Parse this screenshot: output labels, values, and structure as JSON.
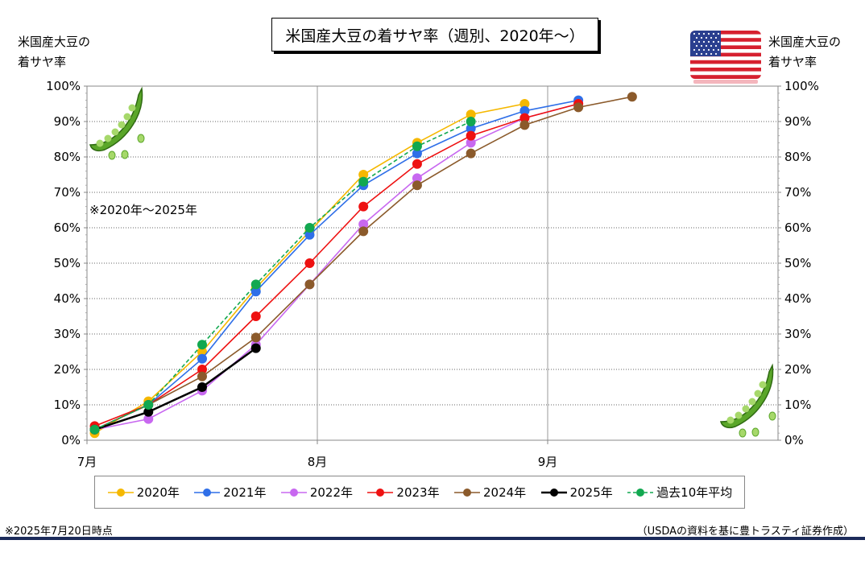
{
  "title": "米国産大豆の着サヤ率（週別、2020年〜）",
  "left_axis_title": [
    "米国産大豆の",
    "着サヤ率"
  ],
  "right_axis_title": [
    "米国産大豆の",
    "着サヤ率"
  ],
  "note": "※2020年〜2025年",
  "footer_left": "※2025年7月20日時点",
  "footer_right": "（USDAの資料を基に豊トラスティ証券作成）",
  "chart_data": {
    "type": "line",
    "x_unit": "days since Jul 1",
    "xlim": [
      0,
      90
    ],
    "x_ticks": [
      {
        "x": 0,
        "label": "7月"
      },
      {
        "x": 30,
        "label": "8月"
      },
      {
        "x": 60,
        "label": "9月"
      }
    ],
    "ylim": [
      0,
      100
    ],
    "y_ticks": [
      0,
      10,
      20,
      30,
      40,
      50,
      60,
      70,
      80,
      90,
      100
    ],
    "y_tick_labels": [
      "0%",
      "10%",
      "20%",
      "30%",
      "40%",
      "50%",
      "60%",
      "70%",
      "80%",
      "90%",
      "100%"
    ],
    "grid": "horizontal dotted, vertical at month starts",
    "legend_position": "bottom",
    "series": [
      {
        "name": "2020年",
        "color": "#f5b800",
        "dashed": false,
        "points": [
          [
            1,
            2
          ],
          [
            8,
            11
          ],
          [
            15,
            25
          ],
          [
            22,
            43
          ],
          [
            29,
            59
          ],
          [
            36,
            75
          ],
          [
            43,
            84
          ],
          [
            50,
            92
          ],
          [
            57,
            95
          ]
        ]
      },
      {
        "name": "2021年",
        "color": "#2f6fe8",
        "dashed": false,
        "points": [
          [
            1,
            3
          ],
          [
            8,
            10
          ],
          [
            15,
            23
          ],
          [
            22,
            42
          ],
          [
            29,
            58
          ],
          [
            36,
            72
          ],
          [
            43,
            81
          ],
          [
            50,
            88
          ],
          [
            57,
            93
          ],
          [
            64,
            96
          ]
        ]
      },
      {
        "name": "2022年",
        "color": "#c868f0",
        "dashed": false,
        "points": [
          [
            1,
            3
          ],
          [
            8,
            6
          ],
          [
            15,
            14
          ],
          [
            22,
            27
          ],
          [
            29,
            44
          ],
          [
            36,
            61
          ],
          [
            43,
            74
          ],
          [
            50,
            84
          ],
          [
            57,
            91
          ],
          [
            64,
            95
          ]
        ]
      },
      {
        "name": "2023年",
        "color": "#ee1111",
        "dashed": false,
        "points": [
          [
            1,
            4
          ],
          [
            8,
            10
          ],
          [
            15,
            20
          ],
          [
            22,
            35
          ],
          [
            29,
            50
          ],
          [
            36,
            66
          ],
          [
            43,
            78
          ],
          [
            50,
            86
          ],
          [
            57,
            91
          ],
          [
            64,
            95
          ]
        ]
      },
      {
        "name": "2024年",
        "color": "#8b5a2b",
        "dashed": false,
        "points": [
          [
            1,
            3
          ],
          [
            8,
            10
          ],
          [
            15,
            18
          ],
          [
            22,
            29
          ],
          [
            29,
            44
          ],
          [
            36,
            59
          ],
          [
            43,
            72
          ],
          [
            50,
            81
          ],
          [
            57,
            89
          ],
          [
            64,
            94
          ],
          [
            71,
            97
          ]
        ]
      },
      {
        "name": "2025年",
        "color": "#000000",
        "dashed": false,
        "points": [
          [
            1,
            3
          ],
          [
            8,
            8
          ],
          [
            15,
            15
          ],
          [
            22,
            26
          ]
        ]
      },
      {
        "name": "過去10年平均",
        "color": "#12a850",
        "dashed": true,
        "points": [
          [
            1,
            3
          ],
          [
            8,
            10
          ],
          [
            15,
            27
          ],
          [
            22,
            44
          ],
          [
            29,
            60
          ],
          [
            36,
            73
          ],
          [
            43,
            83
          ],
          [
            50,
            90
          ]
        ]
      }
    ]
  }
}
